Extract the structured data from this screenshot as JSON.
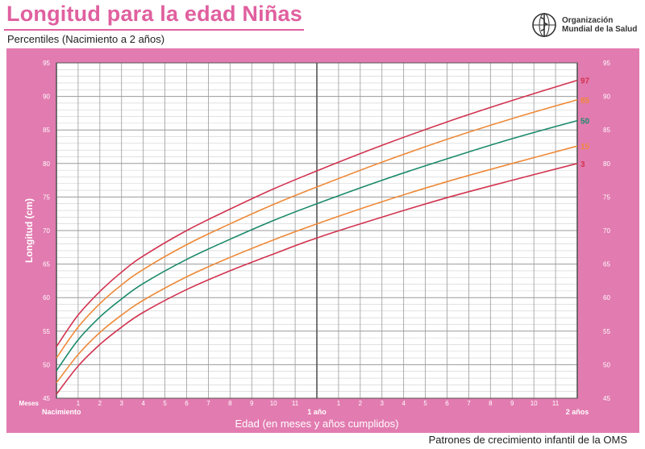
{
  "header": {
    "title": "Longitud para la edad Niñas",
    "subtitle": "Percentiles (Nacimiento a 2 años)",
    "org_line1": "Organización",
    "org_line2": "Mundial de la Salud",
    "footer": "Patrones de crecimiento infantil de la OMS"
  },
  "colors": {
    "frame": "#e27bb0",
    "brand": "#e0609f",
    "p3": "#d2334f",
    "p15": "#ee8a3a",
    "p50": "#1a8a6a",
    "p85": "#ee8a3a",
    "p97": "#d2334f"
  },
  "chart_data": {
    "type": "line",
    "xlabel": "Edad (en meses y años cumplidos)",
    "ylabel": "Longitud (cm)",
    "x_unit_label": "Meses",
    "xlim": [
      0,
      24
    ],
    "ylim": [
      45,
      95
    ],
    "y_ticks": [
      45,
      50,
      55,
      60,
      65,
      70,
      75,
      80,
      85,
      90,
      95
    ],
    "month_ticks": [
      "1",
      "2",
      "3",
      "4",
      "5",
      "6",
      "7",
      "8",
      "9",
      "10",
      "11",
      "",
      "1",
      "2",
      "3",
      "4",
      "5",
      "6",
      "7",
      "8",
      "9",
      "10",
      "11"
    ],
    "year_labels": [
      {
        "month": 0,
        "label": "Nacimiento"
      },
      {
        "month": 12,
        "label": "1 año"
      },
      {
        "month": 24,
        "label": "2 años"
      }
    ],
    "grid": true,
    "x": [
      0,
      1,
      2,
      3,
      4,
      6,
      8,
      10,
      12,
      15,
      18,
      21,
      24
    ],
    "series": [
      {
        "name": "3",
        "values": [
          45.6,
          49.8,
          53.0,
          55.6,
          57.8,
          61.2,
          64.0,
          66.5,
          68.9,
          72.0,
          74.9,
          77.5,
          80.0
        ]
      },
      {
        "name": "15",
        "values": [
          47.3,
          51.5,
          54.8,
          57.4,
          59.6,
          63.1,
          66.0,
          68.6,
          71.0,
          74.3,
          77.3,
          80.0,
          82.6
        ]
      },
      {
        "name": "50",
        "values": [
          49.1,
          53.7,
          57.1,
          59.8,
          62.1,
          65.7,
          68.7,
          71.5,
          74.0,
          77.5,
          80.7,
          83.7,
          86.4
        ]
      },
      {
        "name": "85",
        "values": [
          51.0,
          55.6,
          59.1,
          61.9,
          64.2,
          67.9,
          71.0,
          73.9,
          76.5,
          80.2,
          83.6,
          86.7,
          89.5
        ]
      },
      {
        "name": "97",
        "values": [
          52.7,
          57.4,
          60.9,
          63.8,
          66.2,
          70.0,
          73.2,
          76.2,
          78.9,
          82.7,
          86.2,
          89.4,
          92.4
        ]
      }
    ]
  }
}
